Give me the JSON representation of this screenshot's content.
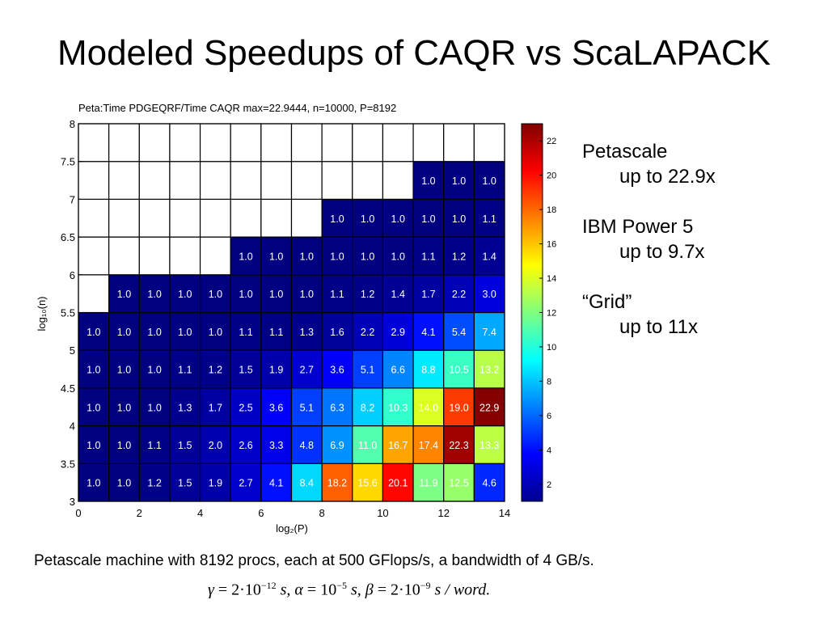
{
  "slide": {
    "title": "Modeled Speedups of CAQR vs ScaLAPACK",
    "notes": [
      {
        "heading": "Petascale",
        "detail": "up to 22.9x"
      },
      {
        "heading": "IBM Power 5",
        "detail": "up to 9.7x"
      },
      {
        "heading": "“Grid”",
        "detail": "up to 11x"
      }
    ],
    "caption": "Petascale machine with 8192 procs, each at 500 GFlops/s, a bandwidth of 4 GB/s.",
    "formula": {
      "gamma_sym": "γ",
      "gamma_mant": "2·10",
      "gamma_exp": "−12",
      "gamma_unit": "s,",
      "alpha_sym": "α",
      "alpha_mant": "10",
      "alpha_exp": "−5",
      "alpha_unit": "s,",
      "beta_sym": "β",
      "beta_mant": "2·10",
      "beta_exp": "−9",
      "beta_unit": "s / word.",
      "equals": " = "
    }
  },
  "chart_data": {
    "type": "heatmap",
    "title": "Peta:Time PDGEQRF/Time CAQR  max=22.9444, n=10000, P=8192",
    "xlabel": "log₂(P)",
    "ylabel": "log₁₀(n)",
    "xlim": [
      0,
      14
    ],
    "ylim": [
      3,
      8
    ],
    "x_ticks": [
      "0",
      "2",
      "4",
      "6",
      "8",
      "10",
      "12",
      "14"
    ],
    "y_ticks": [
      "3",
      "3.5",
      "4",
      "4.5",
      "5",
      "5.5",
      "6",
      "6.5",
      "7",
      "7.5",
      "8"
    ],
    "colorbar": {
      "min": 1,
      "max": 23,
      "ticks": [
        "2",
        "4",
        "6",
        "8",
        "10",
        "12",
        "14",
        "16",
        "18",
        "20",
        "22"
      ]
    },
    "colorscale": "jet",
    "cell_x_count": 14,
    "cell_y_start": 3,
    "cell_y_step": 0.5,
    "rows": [
      {
        "y_from": 3.0,
        "values": [
          "1.0",
          "1.0",
          "1.2",
          "1.5",
          "1.9",
          "2.7",
          "4.1",
          "8.4",
          "18.2",
          "15.6",
          "20.1",
          "11.9",
          "12.5",
          "4.6"
        ]
      },
      {
        "y_from": 3.5,
        "values": [
          "1.0",
          "1.0",
          "1.1",
          "1.5",
          "2.0",
          "2.6",
          "3.3",
          "4.8",
          "6.9",
          "11.0",
          "16.7",
          "17.4",
          "22.3",
          "13.3"
        ]
      },
      {
        "y_from": 4.0,
        "values": [
          "1.0",
          "1.0",
          "1.0",
          "1.3",
          "1.7",
          "2.5",
          "3.6",
          "5.1",
          "6.3",
          "8.2",
          "10.3",
          "14.0",
          "19.0",
          "22.9"
        ]
      },
      {
        "y_from": 4.5,
        "values": [
          "1.0",
          "1.0",
          "1.0",
          "1.1",
          "1.2",
          "1.5",
          "1.9",
          "2.7",
          "3.6",
          "5.1",
          "6.6",
          "8.8",
          "10.5",
          "13.2"
        ]
      },
      {
        "y_from": 5.0,
        "values": [
          "1.0",
          "1.0",
          "1.0",
          "1.0",
          "1.0",
          "1.1",
          "1.1",
          "1.3",
          "1.6",
          "2.2",
          "2.9",
          "4.1",
          "5.4",
          "7.4"
        ]
      },
      {
        "y_from": 5.5,
        "values": [
          "",
          "1.0",
          "1.0",
          "1.0",
          "1.0",
          "1.0",
          "1.0",
          "1.0",
          "1.1",
          "1.2",
          "1.4",
          "1.7",
          "2.2",
          "3.0"
        ]
      },
      {
        "y_from": 6.0,
        "values": [
          "",
          "",
          "",
          "",
          "",
          "1.0",
          "1.0",
          "1.0",
          "1.0",
          "1.0",
          "1.0",
          "1.1",
          "1.2",
          "1.4"
        ]
      },
      {
        "y_from": 6.5,
        "values": [
          "",
          "",
          "",
          "",
          "",
          "",
          "",
          "",
          "1.0",
          "1.0",
          "1.0",
          "1.0",
          "1.0",
          "1.1"
        ]
      },
      {
        "y_from": 7.0,
        "values": [
          "",
          "",
          "",
          "",
          "",
          "",
          "",
          "",
          "",
          "",
          "",
          "1.0",
          "1.0",
          "1.0"
        ]
      },
      {
        "y_from": 7.5,
        "values": [
          "",
          "",
          "",
          "",
          "",
          "",
          "",
          "",
          "",
          "",
          "",
          "",
          "",
          ""
        ]
      }
    ]
  }
}
